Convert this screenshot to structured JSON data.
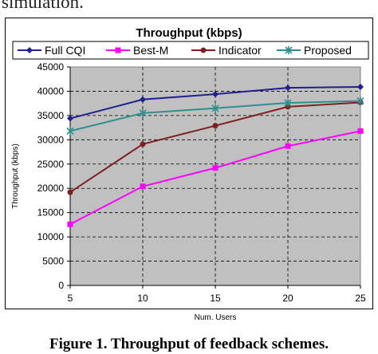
{
  "page": {
    "top_text": "simulation.",
    "caption": "Figure 1. Throughput of feedback schemes."
  },
  "chart_data": {
    "type": "line",
    "title": "Throughput (kbps)",
    "xlabel": "Num. Users",
    "ylabel": "Throughput (kbps)",
    "x": [
      5,
      10,
      15,
      20,
      25
    ],
    "x_ticks": [
      "5",
      "10",
      "15",
      "20",
      "25"
    ],
    "ylim": [
      0,
      45000
    ],
    "y_ticks": [
      "0",
      "5000",
      "10000",
      "15000",
      "20000",
      "25000",
      "30000",
      "35000",
      "40000",
      "45000"
    ],
    "grid": true,
    "legend_position": "top",
    "plot_background": "#c0c0c0",
    "series": [
      {
        "name": "Full CQI",
        "values": [
          34400,
          38300,
          39400,
          40700,
          40900
        ],
        "color": "#1f1f8f",
        "marker": "diamond"
      },
      {
        "name": "Best-M",
        "values": [
          12600,
          20400,
          24200,
          28700,
          31800
        ],
        "color": "#ff00ff",
        "marker": "square"
      },
      {
        "name": "Indicator",
        "values": [
          19200,
          29100,
          32900,
          36800,
          37700
        ],
        "color": "#7f1f1f",
        "marker": "circle"
      },
      {
        "name": "Proposed",
        "values": [
          31800,
          35500,
          36500,
          37600,
          38000
        ],
        "color": "#2f8f8f",
        "marker": "star"
      }
    ]
  }
}
